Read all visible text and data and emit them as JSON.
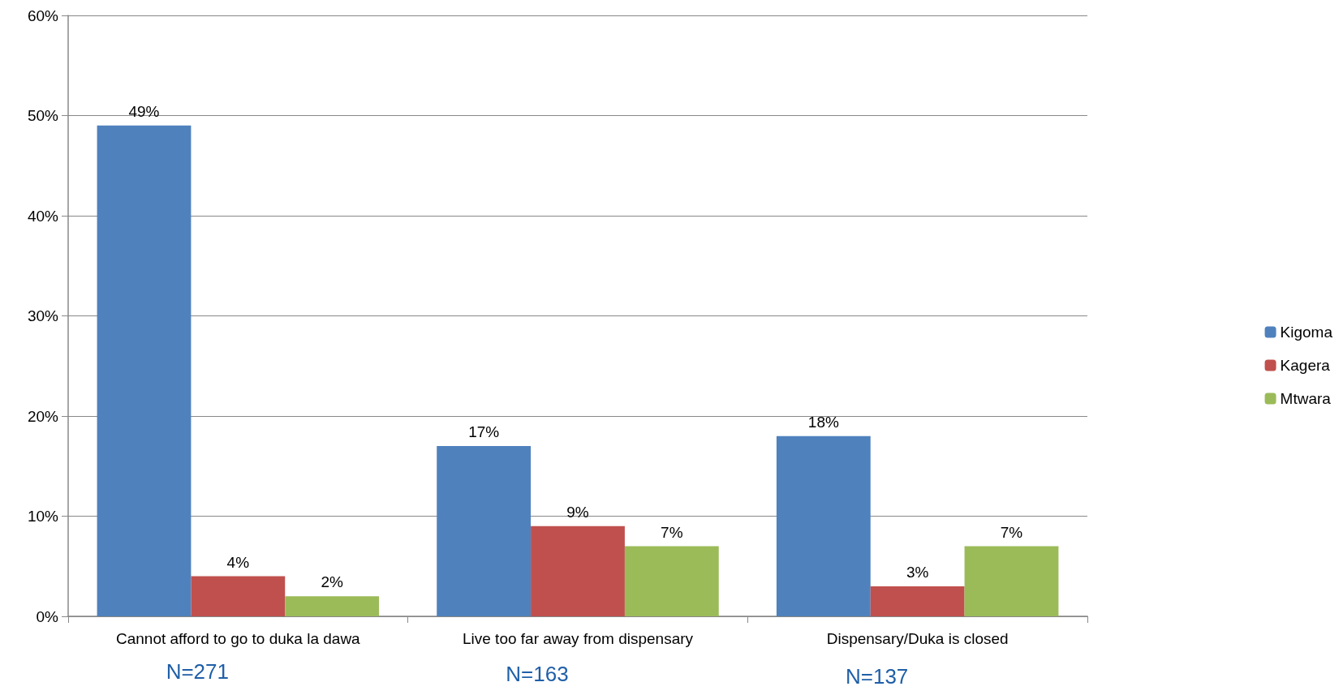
{
  "chart_data": {
    "type": "bar",
    "categories": [
      "Cannot afford to go to duka la dawa",
      "Live too far away from dispensary",
      "Dispensary/Duka is closed"
    ],
    "series": [
      {
        "name": "Kigoma",
        "color": "#4f81bd",
        "values": [
          49,
          17,
          18
        ],
        "value_labels": [
          "49%",
          "17%",
          "18%"
        ]
      },
      {
        "name": "Kagera",
        "color": "#c0504d",
        "values": [
          4,
          9,
          3
        ],
        "value_labels": [
          "4%",
          "9%",
          "3%"
        ]
      },
      {
        "name": "Mtwara",
        "color": "#9bbb59",
        "values": [
          2,
          7,
          7
        ],
        "value_labels": [
          "2%",
          "7%",
          "7%"
        ]
      }
    ],
    "ylim": [
      0,
      60
    ],
    "yticks": [
      {
        "value": 0,
        "label": "0%"
      },
      {
        "value": 10,
        "label": "10%"
      },
      {
        "value": 20,
        "label": "20%"
      },
      {
        "value": 30,
        "label": "30%"
      },
      {
        "value": 40,
        "label": "40%"
      },
      {
        "value": 50,
        "label": "50%"
      },
      {
        "value": 60,
        "label": "60%"
      }
    ],
    "grid": "y",
    "legend": "right",
    "annotations": [
      "N=271",
      "N=163",
      "N=137"
    ]
  }
}
